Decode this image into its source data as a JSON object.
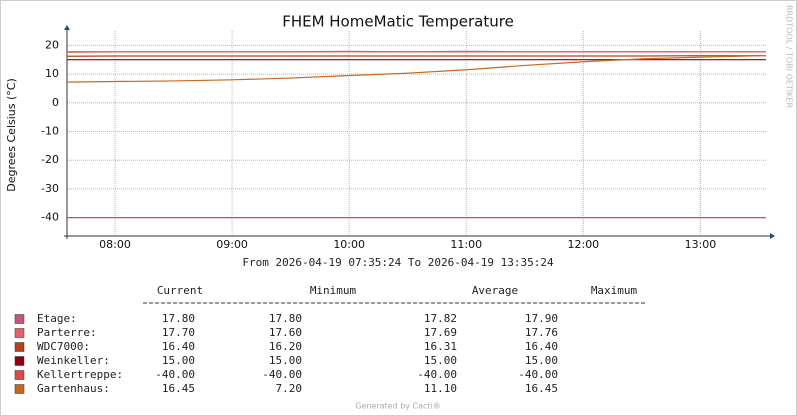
{
  "chart_data": {
    "type": "line",
    "title": "FHEM HomeMatic Temperature",
    "y_label": "Degrees Celsius (°C)",
    "x_label": "From 2026-04-19 07:35:24 To 2026-04-19 13:35:24",
    "side_text": "RRDTOOL / TOBI OETIKER",
    "footer": "Generated by Cacti®",
    "x": [
      7.59,
      8,
      8.5,
      9,
      9.5,
      10,
      10.5,
      11,
      11.5,
      12,
      12.5,
      13,
      13.56
    ],
    "xlim": [
      7.59,
      13.56
    ],
    "xticks": [
      {
        "value": 8,
        "label": "08:00"
      },
      {
        "value": 9,
        "label": "09:00"
      },
      {
        "value": 10,
        "label": "10:00"
      },
      {
        "value": 11,
        "label": "11:00"
      },
      {
        "value": 12,
        "label": "12:00"
      },
      {
        "value": 13,
        "label": "13:00"
      }
    ],
    "ylim": [
      -46.4,
      25
    ],
    "yticks": [
      -40,
      -30,
      -20,
      -10,
      0,
      10,
      20
    ],
    "grid": true,
    "series": [
      {
        "name": "Etage:",
        "color": "#c0587e",
        "values": [
          17.8,
          17.8,
          17.8,
          17.8,
          17.8,
          17.9,
          17.8,
          17.9,
          17.8,
          17.8,
          17.8,
          17.8,
          17.8
        ]
      },
      {
        "name": "Parterre:",
        "color": "#e8606a",
        "values": [
          17.6,
          17.7,
          17.7,
          17.7,
          17.7,
          17.76,
          17.7,
          17.7,
          17.7,
          17.7,
          17.7,
          17.7,
          17.7
        ]
      },
      {
        "name": "WDC7000:",
        "color": "#b8401c",
        "values": [
          16.2,
          16.3,
          16.3,
          16.3,
          16.3,
          16.3,
          16.3,
          16.3,
          16.3,
          16.3,
          16.3,
          16.4,
          16.4
        ]
      },
      {
        "name": "Weinkeller:",
        "color": "#8b0010",
        "values": [
          15,
          15,
          15,
          15,
          15,
          15,
          15,
          15,
          15,
          15,
          15,
          15,
          15
        ]
      },
      {
        "name": "Kellertreppe:",
        "color": "#e04848",
        "values": [
          -40,
          -40,
          -40,
          -40,
          -40,
          -40,
          -40,
          -40,
          -40,
          -40,
          -40,
          -40,
          -40
        ]
      },
      {
        "name": "Gartenhaus:",
        "color": "#c8681c",
        "values": [
          7.2,
          7.4,
          7.6,
          8.0,
          8.6,
          9.5,
          10.3,
          11.5,
          13.0,
          14.3,
          15.3,
          15.9,
          16.45
        ]
      }
    ],
    "stats_columns": [
      "Current",
      "Minimum",
      "Average",
      "Maximum"
    ],
    "stats": [
      [
        "17.80",
        "17.80",
        "17.82",
        "17.90"
      ],
      [
        "17.70",
        "17.60",
        "17.69",
        "17.76"
      ],
      [
        "16.40",
        "16.20",
        "16.31",
        "16.40"
      ],
      [
        "15.00",
        "15.00",
        "15.00",
        "15.00"
      ],
      [
        "-40.00",
        "-40.00",
        "-40.00",
        "-40.00"
      ],
      [
        "16.45",
        "7.20",
        "11.10",
        "16.45"
      ]
    ]
  }
}
